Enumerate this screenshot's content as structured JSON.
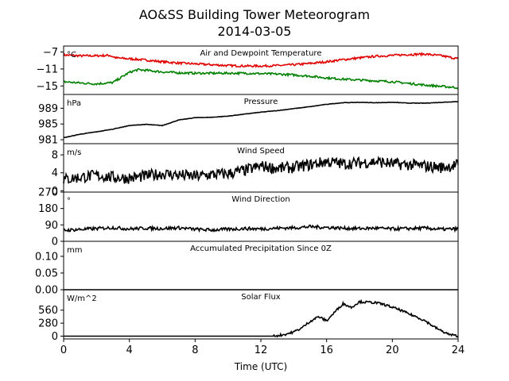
{
  "title": "AO&SS Building Tower Meteorogram",
  "subtitle": "2014-03-05",
  "xlabel": "Time (UTC)",
  "x_ticks": [
    0,
    4,
    8,
    12,
    16,
    20,
    24
  ],
  "chart_data": [
    {
      "type": "line",
      "title": "Air and Dewpoint Temperature",
      "unit_label": "°C",
      "ylim": [
        -17,
        -5.6
      ],
      "y_ticks": [
        -7,
        -11,
        -15
      ],
      "series": [
        {
          "color": "#e00000",
          "x": [
            0,
            1,
            2,
            2.8,
            3.2,
            4,
            5,
            6,
            7,
            8,
            9,
            10,
            11,
            12,
            13,
            14,
            15,
            16,
            17,
            18,
            19,
            20,
            21,
            22,
            23,
            24
          ],
          "y": [
            -7.7,
            -7.9,
            -7.9,
            -7.8,
            -8.4,
            -8.6,
            -8.9,
            -9.3,
            -9.6,
            -9.8,
            -10.0,
            -10.2,
            -10.3,
            -10.3,
            -10.2,
            -10.0,
            -9.7,
            -9.3,
            -8.8,
            -8.4,
            -8.0,
            -7.8,
            -7.6,
            -7.5,
            -7.9,
            -8.6
          ]
        },
        {
          "color": "#008000",
          "x": [
            0,
            1,
            2,
            3,
            3.5,
            4,
            4.5,
            5,
            6,
            7,
            8,
            9,
            10,
            11,
            12,
            13,
            14,
            15,
            16,
            17,
            18,
            19,
            20,
            21,
            22,
            23,
            24
          ],
          "y": [
            -14.0,
            -14.3,
            -14.5,
            -14.2,
            -13.0,
            -11.8,
            -11.2,
            -11.3,
            -11.7,
            -11.9,
            -12.0,
            -12.0,
            -12.0,
            -12.0,
            -12.1,
            -12.2,
            -12.4,
            -12.7,
            -13.1,
            -13.4,
            -13.6,
            -13.8,
            -14.0,
            -14.4,
            -14.8,
            -15.1,
            -15.4
          ]
        }
      ]
    },
    {
      "type": "line",
      "title": "Pressure",
      "unit_label": "hPa",
      "ylim": [
        980,
        992.5
      ],
      "y_ticks": [
        981,
        985,
        989
      ],
      "series": [
        {
          "color": "#000000",
          "x": [
            0,
            1,
            2,
            3,
            4,
            5,
            6,
            7,
            8,
            9,
            10,
            11,
            12,
            13,
            14,
            15,
            16,
            17,
            18,
            19,
            20,
            21,
            22,
            23,
            24
          ],
          "y": [
            981.5,
            982.4,
            983.0,
            983.7,
            984.6,
            984.9,
            984.6,
            986.0,
            986.6,
            986.7,
            987.0,
            987.5,
            988.0,
            988.4,
            988.9,
            989.4,
            990.0,
            990.4,
            990.5,
            990.4,
            990.5,
            990.3,
            990.3,
            990.5,
            990.7
          ]
        }
      ]
    },
    {
      "type": "line",
      "title": "Wind Speed",
      "unit_label": "m/s",
      "ylim": [
        -0.3,
        10.5
      ],
      "y_ticks": [
        0,
        4,
        8
      ],
      "series": [
        {
          "color": "#000000",
          "x": [
            0,
            1,
            2,
            3,
            4,
            5,
            6,
            7,
            8,
            9,
            10,
            11,
            12,
            13,
            14,
            15,
            16,
            17,
            18,
            19,
            20,
            21,
            22,
            23,
            24
          ],
          "y": [
            2.5,
            3.0,
            3.4,
            3.0,
            2.8,
            3.3,
            3.8,
            3.5,
            3.2,
            3.6,
            3.8,
            4.5,
            5.5,
            5.0,
            5.2,
            5.8,
            6.5,
            6.0,
            6.2,
            6.5,
            6.0,
            5.8,
            5.5,
            5.2,
            5.8
          ]
        }
      ]
    },
    {
      "type": "line",
      "title": "Wind Direction",
      "unit_label": "°",
      "ylim": [
        0,
        270
      ],
      "y_ticks": [
        0,
        90,
        180,
        270
      ],
      "series": [
        {
          "color": "#000000",
          "x": [
            0,
            1,
            2,
            3,
            4,
            5,
            6,
            7,
            8,
            9,
            10,
            11,
            12,
            13,
            14,
            15,
            16,
            17,
            18,
            19,
            20,
            21,
            22,
            23,
            24
          ],
          "y": [
            60,
            65,
            70,
            75,
            68,
            72,
            70,
            74,
            66,
            62,
            66,
            70,
            68,
            72,
            74,
            80,
            76,
            72,
            70,
            72,
            68,
            70,
            72,
            66,
            68
          ]
        }
      ]
    },
    {
      "type": "line",
      "title": "Accumulated Precipitation Since 0Z",
      "unit_label": "mm",
      "ylim": [
        0,
        0.145
      ],
      "y_ticks": [
        0.0,
        0.05,
        0.1
      ],
      "series": [
        {
          "color": "#000000",
          "x": [
            0,
            24
          ],
          "y": [
            0,
            0
          ]
        }
      ]
    },
    {
      "type": "line",
      "title": "Solar Flux",
      "unit_label": "W/m^2",
      "ylim": [
        -60,
        1000
      ],
      "y_ticks": [
        0,
        280,
        560
      ],
      "series": [
        {
          "color": "#000000",
          "x": [
            0,
            12.5,
            13,
            13.5,
            14,
            14.5,
            15,
            15.5,
            16,
            16.5,
            17,
            17.5,
            18,
            18.5,
            19,
            19.5,
            20,
            20.5,
            21,
            21.5,
            22,
            22.5,
            23,
            23.5,
            24
          ],
          "y": [
            0,
            0,
            10,
            40,
            90,
            180,
            320,
            420,
            330,
            520,
            700,
            620,
            740,
            730,
            720,
            680,
            620,
            560,
            480,
            410,
            330,
            210,
            110,
            30,
            5
          ]
        }
      ]
    }
  ]
}
